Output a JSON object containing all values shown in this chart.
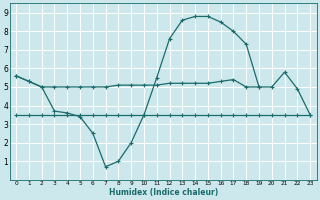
{
  "xlabel": "Humidex (Indice chaleur)",
  "background_color": "#cce8ed",
  "grid_color": "#ffffff",
  "line_color": "#1a6b6b",
  "xlim": [
    -0.5,
    23.5
  ],
  "ylim": [
    0,
    9.5
  ],
  "xticks": [
    0,
    1,
    2,
    3,
    4,
    5,
    6,
    7,
    8,
    9,
    10,
    11,
    12,
    13,
    14,
    15,
    16,
    17,
    18,
    19,
    20,
    21,
    22,
    23
  ],
  "yticks": [
    1,
    2,
    3,
    4,
    5,
    6,
    7,
    8,
    9
  ],
  "line1_x": [
    0,
    1,
    2,
    3,
    4,
    5,
    6,
    7,
    8,
    9,
    10,
    11,
    12,
    13,
    14,
    15,
    16,
    17,
    18,
    19,
    20,
    21,
    22,
    23
  ],
  "line1_y": [
    5.6,
    5.3,
    5.0,
    5.0,
    5.0,
    5.0,
    5.0,
    5.0,
    5.1,
    5.1,
    5.1,
    5.1,
    5.2,
    5.2,
    5.2,
    5.2,
    5.3,
    5.4,
    5.0,
    5.0,
    5.0,
    5.8,
    4.9,
    3.5
  ],
  "line2_x": [
    0,
    1,
    2,
    3,
    4,
    5,
    6,
    7,
    8,
    9,
    10,
    11,
    12,
    13,
    14,
    15,
    16,
    17,
    18,
    19
  ],
  "line2_y": [
    5.6,
    5.3,
    5.0,
    3.7,
    3.6,
    3.4,
    2.5,
    0.7,
    1.0,
    2.0,
    3.5,
    5.5,
    7.6,
    8.6,
    8.8,
    8.8,
    8.5,
    8.0,
    7.3,
    5.0
  ],
  "line3_x": [
    0,
    1,
    2,
    3,
    4,
    5,
    6,
    7,
    8,
    9,
    10,
    11,
    12,
    13,
    14,
    15,
    16,
    17,
    18,
    19,
    20,
    21,
    22,
    23
  ],
  "line3_y": [
    3.5,
    3.5,
    3.5,
    3.5,
    3.5,
    3.5,
    3.5,
    3.5,
    3.5,
    3.5,
    3.5,
    3.5,
    3.5,
    3.5,
    3.5,
    3.5,
    3.5,
    3.5,
    3.5,
    3.5,
    3.5,
    3.5,
    3.5,
    3.5
  ]
}
